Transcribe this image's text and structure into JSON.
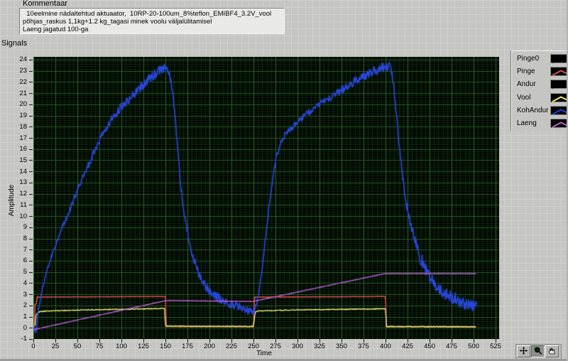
{
  "comment": {
    "label": "Kommentaar",
    "lines": [
      "  10eelmine nädaltehtud aktuaator,  10RP-20-100um_8%teflon_EMIBF4_3.2V_vool",
      "põhjas_raskus 1,1kg+1.2 kg_tagasi minek voolu väljalülitamisel",
      "Laeng jagatud 100-ga"
    ]
  },
  "signals_label": "Signals",
  "chart_data": {
    "type": "line",
    "title": "",
    "xlabel": "Time",
    "ylabel": "Amplitude",
    "xlim": [
      0,
      529
    ],
    "ylim": [
      -1,
      24.25
    ],
    "x_ticks": [
      0,
      25,
      50,
      75,
      100,
      125,
      150,
      175,
      200,
      225,
      250,
      275,
      300,
      325,
      350,
      375,
      400,
      425,
      450,
      475,
      500,
      525
    ],
    "y_ticks": [
      24,
      23,
      22,
      21,
      20,
      19,
      18,
      17,
      16,
      15,
      14,
      13,
      12,
      11,
      10,
      9,
      8,
      7,
      6,
      5,
      4,
      3,
      2,
      1,
      0,
      -1
    ],
    "grid": {
      "background": "#000000",
      "major_color": "#2c682c",
      "minor_color": "#0c290c",
      "x_major_step": 25,
      "x_minor_step": 5,
      "y_major_step": 1,
      "y_minor_step": 0.2
    },
    "legend_position": "right",
    "series": [
      {
        "name": "Pinge0",
        "color": "#000000",
        "width": 1,
        "noise": 0,
        "points": []
      },
      {
        "name": "Pinge",
        "color": "#d9544d",
        "width": 1.5,
        "noise": 0.02,
        "points": [
          [
            0,
            0
          ],
          [
            1.5,
            0
          ],
          [
            1.8,
            2.1
          ],
          [
            3.5,
            2.1
          ],
          [
            3.8,
            2.75
          ],
          [
            150,
            2.8
          ],
          [
            151,
            0.12
          ],
          [
            250,
            0.1
          ],
          [
            251,
            2.75
          ],
          [
            400,
            2.8
          ],
          [
            401,
            0.1
          ],
          [
            503,
            0.08
          ]
        ]
      },
      {
        "name": "Andur",
        "color": "#000000",
        "width": 1,
        "noise": 0,
        "points": []
      },
      {
        "name": "Vool",
        "color": "#f2ef79",
        "width": 1.3,
        "noise": 0.035,
        "points": [
          [
            2,
            0.2
          ],
          [
            3,
            1.15
          ],
          [
            5,
            1.35
          ],
          [
            8,
            1.45
          ],
          [
            15,
            1.5
          ],
          [
            30,
            1.54
          ],
          [
            60,
            1.6
          ],
          [
            100,
            1.66
          ],
          [
            130,
            1.7
          ],
          [
            149,
            1.73
          ],
          [
            150,
            0.15
          ],
          [
            250,
            0.13
          ],
          [
            252,
            1.42
          ],
          [
            256,
            1.5
          ],
          [
            270,
            1.55
          ],
          [
            300,
            1.6
          ],
          [
            340,
            1.64
          ],
          [
            380,
            1.68
          ],
          [
            400,
            1.7
          ],
          [
            401,
            0.12
          ],
          [
            503,
            0.1
          ]
        ]
      },
      {
        "name": "KohAndur",
        "color": "#2746d9",
        "width": 1.7,
        "noise_profile": [
          [
            0,
            0.12
          ],
          [
            20,
            0.22
          ],
          [
            60,
            0.3
          ],
          [
            100,
            0.35
          ],
          [
            130,
            0.45
          ],
          [
            150,
            0.4
          ],
          [
            158,
            0.25
          ],
          [
            175,
            0.35
          ],
          [
            200,
            0.45
          ],
          [
            248,
            0.35
          ],
          [
            258,
            0.18
          ],
          [
            280,
            0.25
          ],
          [
            320,
            0.3
          ],
          [
            360,
            0.38
          ],
          [
            400,
            0.45
          ],
          [
            412,
            0.3
          ],
          [
            430,
            0.55
          ],
          [
            445,
            0.6
          ],
          [
            470,
            0.6
          ],
          [
            504,
            0.5
          ]
        ],
        "points": [
          [
            0,
            0.1
          ],
          [
            1.5,
            -0.2
          ],
          [
            3,
            -0.45
          ],
          [
            4,
            0.5
          ],
          [
            5,
            1.1
          ],
          [
            6,
            1.7
          ],
          [
            8,
            2.6
          ],
          [
            10,
            3.4
          ],
          [
            13,
            4.4
          ],
          [
            16,
            5.3
          ],
          [
            20,
            6.3
          ],
          [
            25,
            7.3
          ],
          [
            30,
            8.4
          ],
          [
            35,
            9.4
          ],
          [
            40,
            10.3
          ],
          [
            45,
            11.3
          ],
          [
            50,
            12.3
          ],
          [
            55,
            13.2
          ],
          [
            60,
            14.1
          ],
          [
            65,
            15.0
          ],
          [
            70,
            15.9
          ],
          [
            75,
            16.8
          ],
          [
            80,
            17.5
          ],
          [
            85,
            18.2
          ],
          [
            90,
            18.8
          ],
          [
            95,
            19.3
          ],
          [
            100,
            19.8
          ],
          [
            105,
            20.2
          ],
          [
            110,
            20.6
          ],
          [
            115,
            21.0
          ],
          [
            120,
            21.4
          ],
          [
            125,
            21.8
          ],
          [
            130,
            22.2
          ],
          [
            135,
            22.5
          ],
          [
            140,
            22.8
          ],
          [
            145,
            23.1
          ],
          [
            149,
            23.3
          ],
          [
            152,
            23.35
          ],
          [
            155,
            22.6
          ],
          [
            158,
            21.2
          ],
          [
            161,
            18.8
          ],
          [
            164,
            16.0
          ],
          [
            167,
            13.2
          ],
          [
            170,
            11.0
          ],
          [
            174,
            9.0
          ],
          [
            178,
            7.4
          ],
          [
            182,
            6.2
          ],
          [
            186,
            5.2
          ],
          [
            191,
            4.3
          ],
          [
            197,
            3.6
          ],
          [
            204,
            3.0
          ],
          [
            212,
            2.55
          ],
          [
            221,
            2.2
          ],
          [
            231,
            1.9
          ],
          [
            241,
            1.6
          ],
          [
            248,
            1.4
          ],
          [
            251,
            1.5
          ],
          [
            254,
            2.3
          ],
          [
            257,
            3.6
          ],
          [
            260,
            5.3
          ],
          [
            263,
            7.5
          ],
          [
            266,
            9.7
          ],
          [
            270,
            12.2
          ],
          [
            275,
            15.0
          ],
          [
            280,
            16.4
          ],
          [
            286,
            17.3
          ],
          [
            293,
            17.9
          ],
          [
            300,
            18.4
          ],
          [
            310,
            19.1
          ],
          [
            320,
            19.7
          ],
          [
            330,
            20.3
          ],
          [
            340,
            20.8
          ],
          [
            350,
            21.3
          ],
          [
            360,
            21.8
          ],
          [
            370,
            22.3
          ],
          [
            380,
            22.7
          ],
          [
            390,
            23.1
          ],
          [
            397,
            23.3
          ],
          [
            403,
            23.45
          ],
          [
            406,
            23.2
          ],
          [
            409,
            21.8
          ],
          [
            412,
            19.5
          ],
          [
            415,
            16.8
          ],
          [
            418,
            14.4
          ],
          [
            421,
            12.5
          ],
          [
            425,
            10.6
          ],
          [
            429,
            9.1
          ],
          [
            434,
            7.6
          ],
          [
            440,
            6.2
          ],
          [
            446,
            5.1
          ],
          [
            452,
            4.3
          ],
          [
            459,
            3.7
          ],
          [
            466,
            3.2
          ],
          [
            474,
            2.8
          ],
          [
            482,
            2.45
          ],
          [
            490,
            2.2
          ],
          [
            497,
            2.0
          ],
          [
            504,
            1.9
          ]
        ]
      },
      {
        "name": "Laeng",
        "color": "#c05fd9",
        "width": 1.4,
        "noise": 0.012,
        "points": [
          [
            1,
            -0.15
          ],
          [
            150,
            2.43
          ],
          [
            156,
            2.44
          ],
          [
            250,
            2.36
          ],
          [
            252,
            2.4
          ],
          [
            399,
            4.85
          ],
          [
            503,
            4.85
          ]
        ]
      }
    ]
  },
  "legend": {
    "items": [
      {
        "label": "Pinge0",
        "color": "#000000"
      },
      {
        "label": "Pinge",
        "color": "#d9544d"
      },
      {
        "label": "Andur",
        "color": "#000000"
      },
      {
        "label": "Vool",
        "color": "#f2ef79"
      },
      {
        "label": "KohAndur",
        "color": "#2746d9"
      },
      {
        "label": "Laeng",
        "color": "#c05fd9"
      }
    ]
  },
  "palette": {
    "tools": [
      "move",
      "zoom",
      "pan"
    ],
    "active": "zoom"
  }
}
